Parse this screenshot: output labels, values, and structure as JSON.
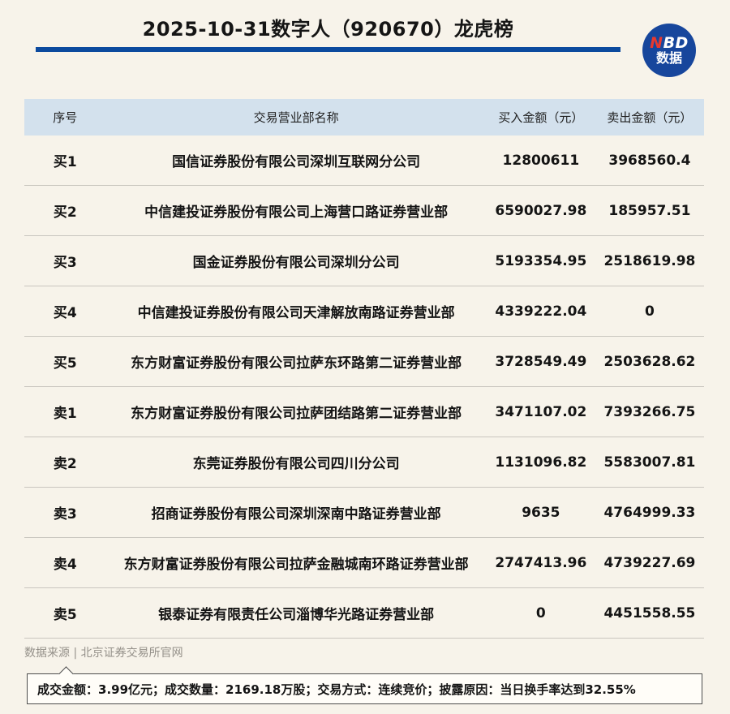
{
  "header": {
    "title": "2025-10-31数字人（920670）龙虎榜",
    "underline_color": "#0c4a9e"
  },
  "logo": {
    "text_n": "N",
    "text_bd": "BD",
    "text_cn": "数据",
    "circle_color": "#17469c",
    "n_color": "#e8392f"
  },
  "table": {
    "header_bg_color": "#d3e1ed",
    "columns": [
      "序号",
      "交易营业部名称",
      "买入金额（元）",
      "卖出金额（元）"
    ],
    "rows": [
      {
        "rank": "买1",
        "name": "国信证券股份有限公司深圳互联网分公司",
        "buy": "12800611",
        "sell": "3968560.4"
      },
      {
        "rank": "买2",
        "name": "中信建投证券股份有限公司上海营口路证券营业部",
        "buy": "6590027.98",
        "sell": "185957.51"
      },
      {
        "rank": "买3",
        "name": "国金证券股份有限公司深圳分公司",
        "buy": "5193354.95",
        "sell": "2518619.98"
      },
      {
        "rank": "买4",
        "name": "中信建投证券股份有限公司天津解放南路证券营业部",
        "buy": "4339222.04",
        "sell": "0"
      },
      {
        "rank": "买5",
        "name": "东方财富证券股份有限公司拉萨东环路第二证券营业部",
        "buy": "3728549.49",
        "sell": "2503628.62"
      },
      {
        "rank": "卖1",
        "name": "东方财富证券股份有限公司拉萨团结路第二证券营业部",
        "buy": "3471107.02",
        "sell": "7393266.75"
      },
      {
        "rank": "卖2",
        "name": "东莞证券股份有限公司四川分公司",
        "buy": "1131096.82",
        "sell": "5583007.81"
      },
      {
        "rank": "卖3",
        "name": "招商证券股份有限公司深圳深南中路证券营业部",
        "buy": "9635",
        "sell": "4764999.33"
      },
      {
        "rank": "卖4",
        "name": "东方财富证券股份有限公司拉萨金融城南环路证券营业部",
        "buy": "2747413.96",
        "sell": "4739227.69"
      },
      {
        "rank": "卖5",
        "name": "银泰证券有限责任公司淄博华光路证券营业部",
        "buy": "0",
        "sell": "4451558.55"
      }
    ]
  },
  "footer": {
    "source": "数据来源 | 北京证券交易所官网",
    "summary": "成交金额：3.99亿元；成交数量：2169.18万股；交易方式：连续竞价；披露原因：当日换手率达到32.55%"
  },
  "chart_data": {
    "type": "table",
    "title": "2025-10-31数字人（920670）龙虎榜",
    "columns": [
      "序号",
      "交易营业部名称",
      "买入金额（元）",
      "卖出金额（元）"
    ],
    "rows": [
      {
        "rank": "买1",
        "broker": "国信证券股份有限公司深圳互联网分公司",
        "buy_amount": 12800611,
        "sell_amount": 3968560.4
      },
      {
        "rank": "买2",
        "broker": "中信建投证券股份有限公司上海营口路证券营业部",
        "buy_amount": 6590027.98,
        "sell_amount": 185957.51
      },
      {
        "rank": "买3",
        "broker": "国金证券股份有限公司深圳分公司",
        "buy_amount": 5193354.95,
        "sell_amount": 2518619.98
      },
      {
        "rank": "买4",
        "broker": "中信建投证券股份有限公司天津解放南路证券营业部",
        "buy_amount": 4339222.04,
        "sell_amount": 0
      },
      {
        "rank": "买5",
        "broker": "东方财富证券股份有限公司拉萨东环路第二证券营业部",
        "buy_amount": 3728549.49,
        "sell_amount": 2503628.62
      },
      {
        "rank": "卖1",
        "broker": "东方财富证券股份有限公司拉萨团结路第二证券营业部",
        "buy_amount": 3471107.02,
        "sell_amount": 7393266.75
      },
      {
        "rank": "卖2",
        "broker": "东莞证券股份有限公司四川分公司",
        "buy_amount": 1131096.82,
        "sell_amount": 5583007.81
      },
      {
        "rank": "卖3",
        "broker": "招商证券股份有限公司深圳深南中路证券营业部",
        "buy_amount": 9635,
        "sell_amount": 4764999.33
      },
      {
        "rank": "卖4",
        "broker": "东方财富证券股份有限公司拉萨金融城南环路证券营业部",
        "buy_amount": 2747413.96,
        "sell_amount": 4739227.69
      },
      {
        "rank": "卖5",
        "broker": "银泰证券有限责任公司淄博华光路证券营业部",
        "buy_amount": 0,
        "sell_amount": 4451558.55
      }
    ],
    "notes": {
      "turnover_amount": "3.99亿元",
      "volume": "2169.18万股",
      "trading_mode": "连续竞价",
      "disclosure_reason": "当日换手率达到32.55%"
    }
  }
}
